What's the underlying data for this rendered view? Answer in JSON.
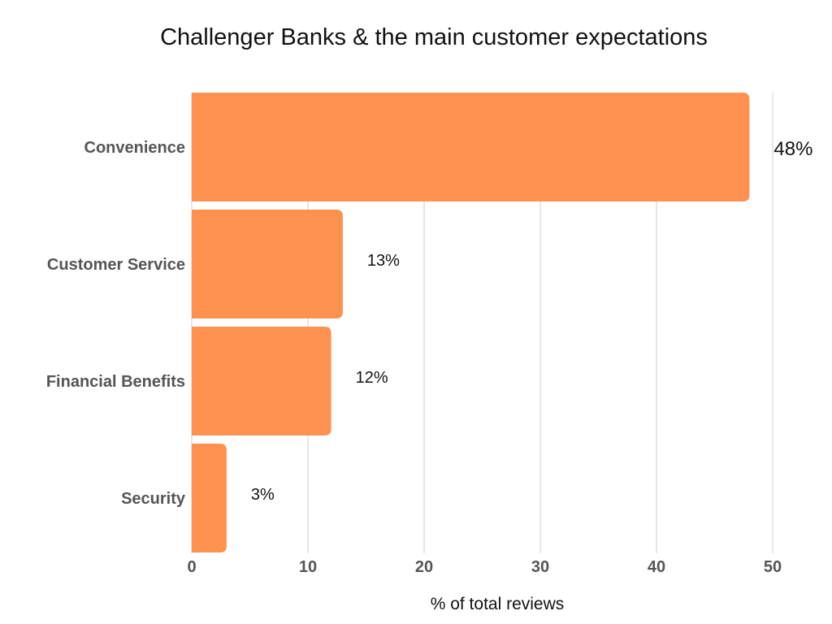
{
  "chart_data": {
    "type": "bar",
    "orientation": "horizontal",
    "title": "Challenger Banks & the main customer expectations",
    "xlabel": "% of total reviews",
    "ylabel": "",
    "categories": [
      "Convenience",
      "Customer Service",
      "Financial Benefits",
      "Security"
    ],
    "values": [
      48,
      13,
      12,
      3
    ],
    "data_labels": [
      "48%",
      "13%",
      "12%",
      "3%"
    ],
    "xlim": [
      0,
      50
    ],
    "x_ticks": [
      0,
      10,
      20,
      30,
      40,
      50
    ],
    "grid": "vertical",
    "legend": "none",
    "colors": {
      "bar": "#ff9150",
      "grid": "#dddddd",
      "tick_text": "#555555",
      "text": "#111111"
    }
  }
}
